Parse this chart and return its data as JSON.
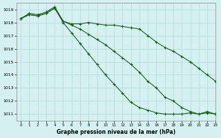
{
  "title": "Graphe pression niveau de la mer (hPa)",
  "background_color": "#d4f0f0",
  "grid_color": "#b8dede",
  "line_color": "#1a5c1a",
  "xlim": [
    -0.5,
    23
  ],
  "ylim": [
    1010.5,
    1019.5
  ],
  "yticks": [
    1011,
    1012,
    1013,
    1014,
    1015,
    1016,
    1017,
    1018,
    1019
  ],
  "xticks": [
    0,
    1,
    2,
    3,
    4,
    5,
    6,
    7,
    8,
    9,
    10,
    11,
    12,
    13,
    14,
    15,
    16,
    17,
    18,
    19,
    20,
    21,
    22,
    23
  ],
  "series1_x": [
    0,
    1,
    2,
    3,
    4,
    5,
    6,
    7,
    8,
    9,
    10,
    11,
    12,
    13,
    14,
    15,
    16,
    17,
    18,
    19,
    20,
    21,
    22,
    23
  ],
  "series1_y": [
    1018.3,
    1018.6,
    1018.5,
    1018.7,
    1019.1,
    1018.1,
    1017.9,
    1017.9,
    1018.0,
    1017.9,
    1017.8,
    1017.8,
    1017.7,
    1017.6,
    1017.5,
    1017.0,
    1016.5,
    1016.1,
    1015.8,
    1015.4,
    1015.0,
    1014.5,
    1014.0,
    1013.5
  ],
  "series2_x": [
    0,
    1,
    2,
    3,
    4,
    5,
    6,
    7,
    8,
    9,
    10,
    11,
    12,
    13,
    14,
    15,
    16,
    17,
    18,
    19,
    20,
    21,
    22,
    23
  ],
  "series2_y": [
    1018.3,
    1018.6,
    1018.5,
    1018.7,
    1019.1,
    1018.0,
    1017.2,
    1016.4,
    1015.6,
    1014.8,
    1014.0,
    1013.3,
    1012.6,
    1011.9,
    1011.5,
    1011.3,
    1011.1,
    1011.0,
    1011.0,
    1011.0,
    1011.1,
    1011.0,
    1011.1,
    1011.0
  ],
  "series3_x": [
    0,
    1,
    2,
    3,
    4,
    5,
    6,
    7,
    8,
    9,
    10,
    11,
    12,
    13,
    14,
    15,
    16,
    17,
    18,
    19,
    20,
    21,
    22,
    23
  ],
  "series3_y": [
    1018.3,
    1018.7,
    1018.6,
    1018.8,
    1019.2,
    1018.1,
    1017.8,
    1017.5,
    1017.1,
    1016.7,
    1016.3,
    1015.8,
    1015.3,
    1014.8,
    1014.2,
    1013.5,
    1013.0,
    1012.3,
    1012.0,
    1011.5,
    1011.2,
    1011.0,
    1011.2,
    1011.0
  ]
}
